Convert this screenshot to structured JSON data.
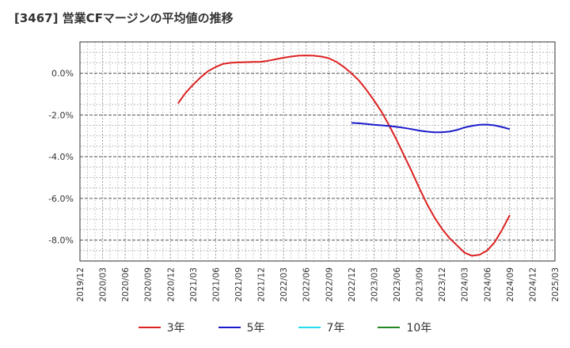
{
  "title": "[3467]  営業CFマージンの平均値の推移",
  "chart_data": {
    "type": "line",
    "title": "[3467]  営業CFマージンの平均値の推移",
    "xlabel": "",
    "ylabel": "",
    "x_ticks": [
      "2019/12",
      "2020/03",
      "2020/06",
      "2020/09",
      "2020/12",
      "2021/03",
      "2021/06",
      "2021/09",
      "2021/12",
      "2022/03",
      "2022/06",
      "2022/09",
      "2022/12",
      "2023/03",
      "2023/06",
      "2023/09",
      "2023/12",
      "2024/03",
      "2024/06",
      "2024/09",
      "2024/12",
      "2025/03"
    ],
    "y_ticks": [
      "0.0%",
      "-2.0%",
      "-4.0%",
      "-6.0%",
      "-8.0%"
    ],
    "y_tick_values": [
      0,
      -2,
      -4,
      -6,
      -8
    ],
    "ylim": [
      -9.0,
      1.5
    ],
    "grid": true,
    "legend_position": "bottom",
    "series": [
      {
        "name": "3年",
        "color": "#dd2222",
        "x": [
          "2021/01",
          "2021/02",
          "2021/03",
          "2021/04",
          "2021/05",
          "2021/06",
          "2021/07",
          "2021/08",
          "2021/09",
          "2021/10",
          "2021/11",
          "2021/12",
          "2022/01",
          "2022/02",
          "2022/03",
          "2022/04",
          "2022/05",
          "2022/06",
          "2022/07",
          "2022/08",
          "2022/09",
          "2022/10",
          "2022/11",
          "2022/12",
          "2023/01",
          "2023/02",
          "2023/03",
          "2023/04",
          "2023/05",
          "2023/06",
          "2023/07",
          "2023/08",
          "2023/09",
          "2023/10",
          "2023/11",
          "2023/12",
          "2024/01",
          "2024/02",
          "2024/03",
          "2024/04",
          "2024/05",
          "2024/06",
          "2024/07",
          "2024/08",
          "2024/09"
        ],
        "values": [
          -1.45,
          -0.95,
          -0.55,
          -0.2,
          0.1,
          0.3,
          0.45,
          0.5,
          0.52,
          0.53,
          0.54,
          0.55,
          0.6,
          0.67,
          0.74,
          0.8,
          0.84,
          0.85,
          0.84,
          0.8,
          0.72,
          0.55,
          0.3,
          0.0,
          -0.35,
          -0.8,
          -1.3,
          -1.85,
          -2.5,
          -3.2,
          -3.95,
          -4.7,
          -5.5,
          -6.25,
          -6.9,
          -7.45,
          -7.9,
          -8.25,
          -8.6,
          -8.75,
          -8.7,
          -8.5,
          -8.1,
          -7.5,
          -6.8
        ]
      },
      {
        "name": "5年",
        "color": "#1a1acc",
        "x": [
          "2022/12",
          "2023/01",
          "2023/02",
          "2023/03",
          "2023/04",
          "2023/05",
          "2023/06",
          "2023/07",
          "2023/08",
          "2023/09",
          "2023/10",
          "2023/11",
          "2023/12",
          "2024/01",
          "2024/02",
          "2024/03",
          "2024/04",
          "2024/05",
          "2024/06",
          "2024/07",
          "2024/08",
          "2024/09"
        ],
        "values": [
          -2.38,
          -2.4,
          -2.43,
          -2.47,
          -2.5,
          -2.53,
          -2.57,
          -2.62,
          -2.68,
          -2.75,
          -2.8,
          -2.83,
          -2.83,
          -2.8,
          -2.72,
          -2.6,
          -2.52,
          -2.47,
          -2.46,
          -2.5,
          -2.58,
          -2.68
        ]
      },
      {
        "name": "7年",
        "color": "#22ddee",
        "x": [],
        "values": []
      },
      {
        "name": "10年",
        "color": "#228822",
        "x": [],
        "values": []
      }
    ]
  }
}
